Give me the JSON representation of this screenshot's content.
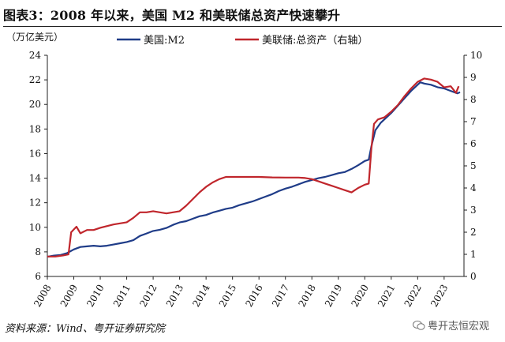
{
  "title": "图表3：2008 年以来，美国 M2 和美联储总资产快速攀升",
  "unit_label": "（万亿美元）",
  "source": "资料来源：Wind、粤开证券研究院",
  "watermark": "粤开志恒宏观",
  "chart_data": {
    "type": "line",
    "x_ticks": [
      "2008",
      "2009",
      "2010",
      "2011",
      "2012",
      "2013",
      "2014",
      "2015",
      "2016",
      "2017",
      "2018",
      "2019",
      "2020",
      "2021",
      "2022",
      "2023"
    ],
    "y_left_ticks": [
      "6",
      "8",
      "10",
      "12",
      "14",
      "16",
      "18",
      "20",
      "22",
      "24"
    ],
    "y_right_ticks": [
      "0",
      "1",
      "2",
      "3",
      "4",
      "5",
      "6",
      "7",
      "8",
      "9",
      "10"
    ],
    "y_left_range": [
      6,
      24
    ],
    "y_right_range": [
      0,
      10
    ],
    "x_range": [
      2008,
      2023.75
    ],
    "legend_position": "top",
    "series": [
      {
        "name": "美国:M2",
        "axis": "left",
        "color": "#1f3c88",
        "points": [
          [
            2008.0,
            7.6
          ],
          [
            2008.25,
            7.7
          ],
          [
            2008.5,
            7.75
          ],
          [
            2008.75,
            7.9
          ],
          [
            2009.0,
            8.2
          ],
          [
            2009.25,
            8.4
          ],
          [
            2009.5,
            8.45
          ],
          [
            2009.75,
            8.5
          ],
          [
            2010.0,
            8.45
          ],
          [
            2010.25,
            8.5
          ],
          [
            2010.5,
            8.6
          ],
          [
            2010.75,
            8.7
          ],
          [
            2011.0,
            8.8
          ],
          [
            2011.25,
            8.95
          ],
          [
            2011.5,
            9.3
          ],
          [
            2011.75,
            9.5
          ],
          [
            2012.0,
            9.7
          ],
          [
            2012.25,
            9.8
          ],
          [
            2012.5,
            9.95
          ],
          [
            2012.75,
            10.2
          ],
          [
            2013.0,
            10.4
          ],
          [
            2013.25,
            10.5
          ],
          [
            2013.5,
            10.7
          ],
          [
            2013.75,
            10.9
          ],
          [
            2014.0,
            11.0
          ],
          [
            2014.25,
            11.2
          ],
          [
            2014.5,
            11.35
          ],
          [
            2014.75,
            11.5
          ],
          [
            2015.0,
            11.6
          ],
          [
            2015.25,
            11.8
          ],
          [
            2015.5,
            11.95
          ],
          [
            2015.75,
            12.1
          ],
          [
            2016.0,
            12.3
          ],
          [
            2016.25,
            12.5
          ],
          [
            2016.5,
            12.7
          ],
          [
            2016.75,
            12.95
          ],
          [
            2017.0,
            13.15
          ],
          [
            2017.25,
            13.3
          ],
          [
            2017.5,
            13.5
          ],
          [
            2017.75,
            13.7
          ],
          [
            2018.0,
            13.85
          ],
          [
            2018.25,
            14.0
          ],
          [
            2018.5,
            14.1
          ],
          [
            2018.75,
            14.25
          ],
          [
            2019.0,
            14.4
          ],
          [
            2019.25,
            14.5
          ],
          [
            2019.5,
            14.75
          ],
          [
            2019.75,
            15.05
          ],
          [
            2020.0,
            15.4
          ],
          [
            2020.15,
            15.5
          ],
          [
            2020.25,
            16.6
          ],
          [
            2020.4,
            17.9
          ],
          [
            2020.6,
            18.5
          ],
          [
            2020.75,
            18.8
          ],
          [
            2021.0,
            19.3
          ],
          [
            2021.25,
            19.9
          ],
          [
            2021.5,
            20.5
          ],
          [
            2021.75,
            21.1
          ],
          [
            2022.0,
            21.6
          ],
          [
            2022.1,
            21.8
          ],
          [
            2022.25,
            21.7
          ],
          [
            2022.5,
            21.6
          ],
          [
            2022.75,
            21.4
          ],
          [
            2023.0,
            21.3
          ],
          [
            2023.25,
            21.1
          ],
          [
            2023.5,
            20.9
          ],
          [
            2023.6,
            21.0
          ]
        ]
      },
      {
        "name": "美联储:总资产（右轴）",
        "axis": "right",
        "color": "#c0262c",
        "points": [
          [
            2008.0,
            0.9
          ],
          [
            2008.3,
            0.9
          ],
          [
            2008.6,
            0.95
          ],
          [
            2008.8,
            1.0
          ],
          [
            2008.9,
            2.0
          ],
          [
            2009.1,
            2.25
          ],
          [
            2009.25,
            1.95
          ],
          [
            2009.5,
            2.1
          ],
          [
            2009.75,
            2.1
          ],
          [
            2010.0,
            2.2
          ],
          [
            2010.5,
            2.35
          ],
          [
            2011.0,
            2.45
          ],
          [
            2011.25,
            2.65
          ],
          [
            2011.5,
            2.9
          ],
          [
            2011.75,
            2.9
          ],
          [
            2012.0,
            2.95
          ],
          [
            2012.5,
            2.85
          ],
          [
            2013.0,
            2.95
          ],
          [
            2013.25,
            3.2
          ],
          [
            2013.5,
            3.5
          ],
          [
            2013.75,
            3.8
          ],
          [
            2014.0,
            4.05
          ],
          [
            2014.25,
            4.25
          ],
          [
            2014.5,
            4.4
          ],
          [
            2014.75,
            4.5
          ],
          [
            2015.0,
            4.5
          ],
          [
            2015.5,
            4.5
          ],
          [
            2016.0,
            4.5
          ],
          [
            2016.5,
            4.48
          ],
          [
            2017.0,
            4.47
          ],
          [
            2017.5,
            4.47
          ],
          [
            2017.75,
            4.45
          ],
          [
            2018.0,
            4.4
          ],
          [
            2018.25,
            4.3
          ],
          [
            2018.5,
            4.2
          ],
          [
            2018.75,
            4.1
          ],
          [
            2019.0,
            4.0
          ],
          [
            2019.25,
            3.9
          ],
          [
            2019.5,
            3.8
          ],
          [
            2019.75,
            4.0
          ],
          [
            2020.0,
            4.15
          ],
          [
            2020.15,
            4.2
          ],
          [
            2020.25,
            5.8
          ],
          [
            2020.35,
            6.9
          ],
          [
            2020.5,
            7.1
          ],
          [
            2020.75,
            7.2
          ],
          [
            2021.0,
            7.45
          ],
          [
            2021.25,
            7.75
          ],
          [
            2021.5,
            8.15
          ],
          [
            2021.75,
            8.5
          ],
          [
            2022.0,
            8.8
          ],
          [
            2022.25,
            8.95
          ],
          [
            2022.5,
            8.9
          ],
          [
            2022.75,
            8.8
          ],
          [
            2023.0,
            8.55
          ],
          [
            2023.25,
            8.6
          ],
          [
            2023.45,
            8.3
          ],
          [
            2023.55,
            8.6
          ]
        ]
      }
    ]
  }
}
